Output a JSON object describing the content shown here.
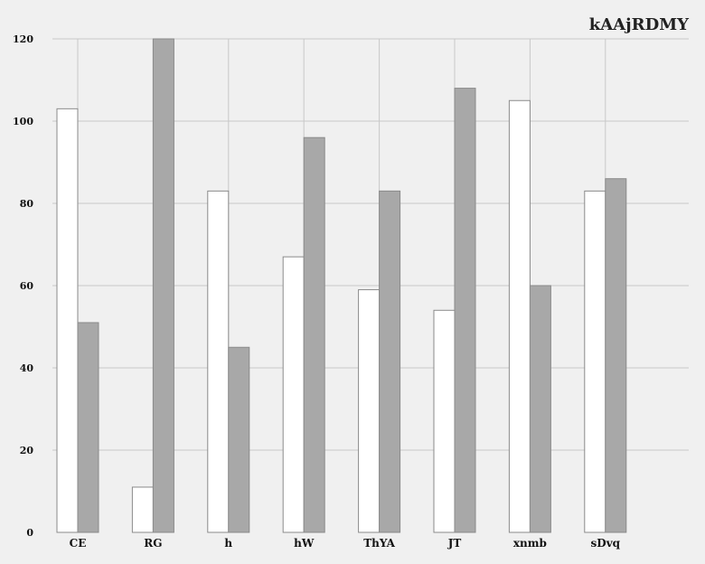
{
  "chart_data": {
    "type": "bar",
    "title": "kAAjRDMY",
    "xlabel": "",
    "ylabel": "",
    "ylim": [
      0,
      120
    ],
    "yticks": [
      0,
      20,
      40,
      60,
      80,
      100,
      120
    ],
    "categories": [
      "CE",
      "RG",
      "h",
      "hW",
      "ThYA",
      "JT",
      "xnmb",
      "sDvq"
    ],
    "series": [
      {
        "color": "#ffffff",
        "values": [
          103,
          11,
          83,
          67,
          59,
          54,
          105,
          83
        ]
      },
      {
        "color": "#a8a8a8",
        "values": [
          51,
          120,
          45,
          96,
          83,
          108,
          60,
          86
        ]
      }
    ],
    "grid": true,
    "legend": "none"
  }
}
